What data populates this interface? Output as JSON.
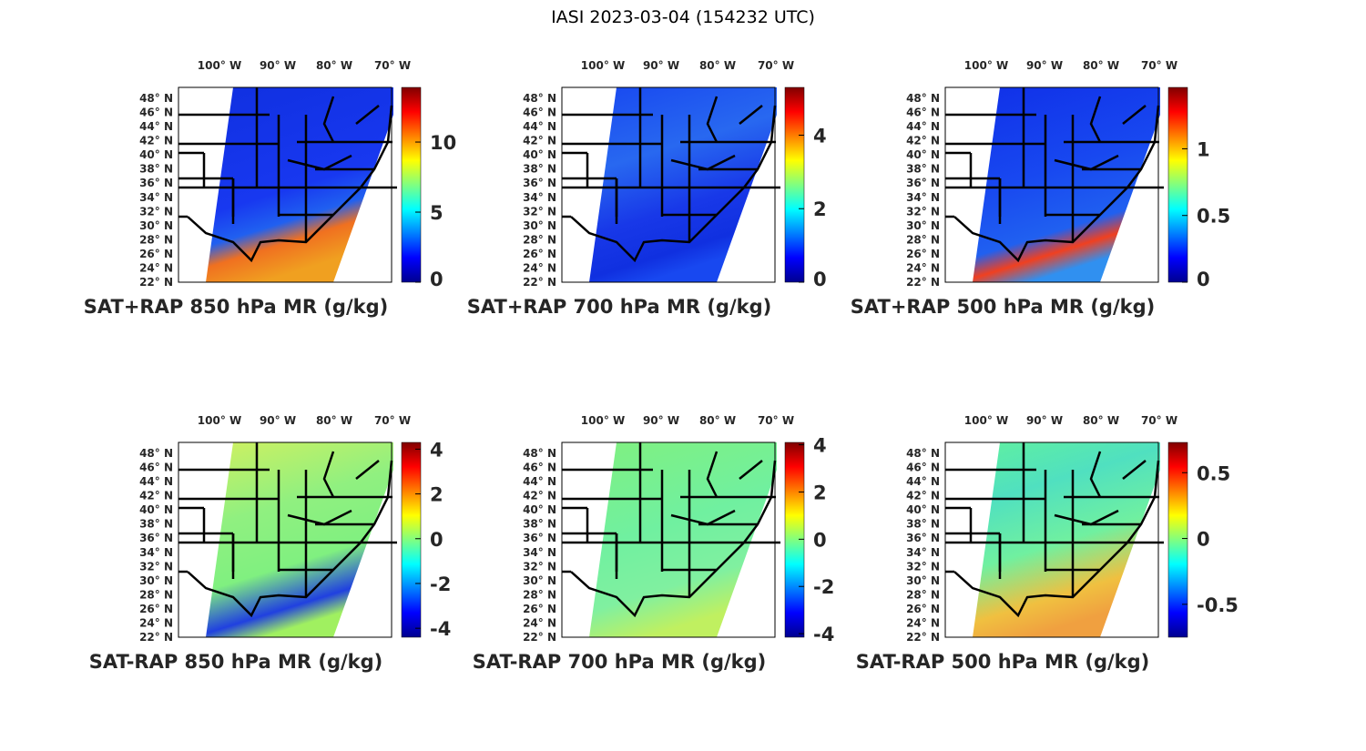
{
  "title": "IASI 2023-03-04 (154232 UTC)",
  "chart_data": [
    {
      "type": "heatmap",
      "title": "SAT+RAP 850 hPa MR (g/kg)",
      "lon_ticks": [
        "100° W",
        "90° W",
        "80° W",
        "70° W"
      ],
      "lat_ticks": [
        "48° N",
        "46° N",
        "44° N",
        "42° N",
        "40° N",
        "38° N",
        "36° N",
        "34° N",
        "32° N",
        "30° N",
        "28° N",
        "26° N",
        "24° N",
        "22° N"
      ],
      "colorbar": {
        "colormap": "jet",
        "clim": [
          0,
          13.9
        ],
        "ticks": [
          0,
          5,
          10
        ],
        "tick_labels": [
          "0",
          "5",
          "10"
        ]
      }
    },
    {
      "type": "heatmap",
      "title": "SAT+RAP 700 hPa MR (g/kg)",
      "lon_ticks": [
        "100° W",
        "90° W",
        "80° W",
        "70° W"
      ],
      "lat_ticks": [
        "48° N",
        "46° N",
        "44° N",
        "42° N",
        "40° N",
        "38° N",
        "36° N",
        "34° N",
        "32° N",
        "30° N",
        "28° N",
        "26° N",
        "24° N",
        "22° N"
      ],
      "colorbar": {
        "colormap": "jet",
        "clim": [
          0,
          5.3
        ],
        "ticks": [
          0,
          2,
          4
        ],
        "tick_labels": [
          "0",
          "2",
          "4"
        ]
      }
    },
    {
      "type": "heatmap",
      "title": "SAT+RAP 500 hPa MR (g/kg)",
      "lon_ticks": [
        "100° W",
        "90° W",
        "80° W",
        "70° W"
      ],
      "lat_ticks": [
        "48° N",
        "46° N",
        "44° N",
        "42° N",
        "40° N",
        "38° N",
        "36° N",
        "34° N",
        "32° N",
        "30° N",
        "28° N",
        "26° N",
        "24° N",
        "22° N"
      ],
      "colorbar": {
        "colormap": "jet",
        "clim": [
          0,
          1.46
        ],
        "ticks": [
          0,
          0.5,
          1
        ],
        "tick_labels": [
          "0",
          "0.5",
          "1"
        ]
      }
    },
    {
      "type": "heatmap",
      "title": "SAT-RAP 850 hPa MR (g/kg)",
      "lon_ticks": [
        "100° W",
        "90° W",
        "80° W",
        "70° W"
      ],
      "lat_ticks": [
        "48° N",
        "46° N",
        "44° N",
        "42° N",
        "40° N",
        "38° N",
        "36° N",
        "34° N",
        "32° N",
        "30° N",
        "28° N",
        "26° N",
        "24° N",
        "22° N"
      ],
      "colorbar": {
        "colormap": "jet",
        "clim": [
          -4.4,
          4.3
        ],
        "ticks": [
          -4,
          -2,
          0,
          2,
          4
        ],
        "tick_labels": [
          "-4",
          "-2",
          "0",
          "2",
          "4"
        ]
      }
    },
    {
      "type": "heatmap",
      "title": "SAT-RAP 700 hPa MR (g/kg)",
      "lon_ticks": [
        "100° W",
        "90° W",
        "80° W",
        "70° W"
      ],
      "lat_ticks": [
        "48° N",
        "46° N",
        "44° N",
        "42° N",
        "40° N",
        "38° N",
        "36° N",
        "34° N",
        "32° N",
        "30° N",
        "28° N",
        "26° N",
        "24° N",
        "22° N"
      ],
      "colorbar": {
        "colormap": "jet",
        "clim": [
          -4.15,
          4.1
        ],
        "ticks": [
          -4,
          -2,
          0,
          2,
          4
        ],
        "tick_labels": [
          "-4",
          "-2",
          "0",
          "2",
          "4"
        ]
      }
    },
    {
      "type": "heatmap",
      "title": "SAT-RAP 500 hPa MR (g/kg)",
      "lon_ticks": [
        "100° W",
        "90° W",
        "80° W",
        "70° W"
      ],
      "lat_ticks": [
        "48° N",
        "46° N",
        "44° N",
        "42° N",
        "40° N",
        "38° N",
        "36° N",
        "34° N",
        "32° N",
        "30° N",
        "28° N",
        "26° N",
        "24° N",
        "22° N"
      ],
      "colorbar": {
        "colormap": "jet",
        "clim": [
          -0.75,
          0.73
        ],
        "ticks": [
          -0.5,
          0,
          0.5
        ],
        "tick_labels": [
          "-0.5",
          "0",
          "0.5"
        ]
      }
    }
  ]
}
